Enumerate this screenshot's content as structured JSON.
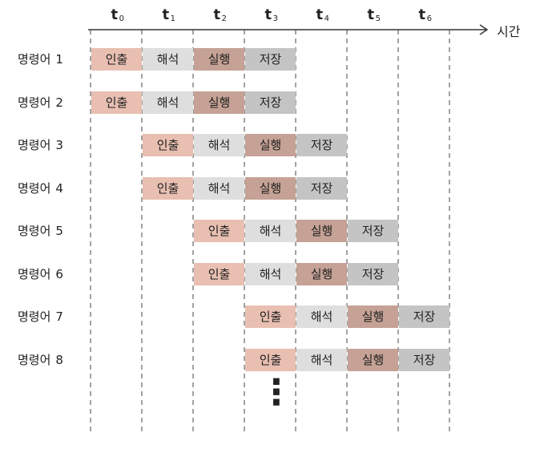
{
  "axis": {
    "label": "시간"
  },
  "ticks": [
    {
      "base": "t",
      "sub": "0"
    },
    {
      "base": "t",
      "sub": "1"
    },
    {
      "base": "t",
      "sub": "2"
    },
    {
      "base": "t",
      "sub": "3"
    },
    {
      "base": "t",
      "sub": "4"
    },
    {
      "base": "t",
      "sub": "5"
    },
    {
      "base": "t",
      "sub": "6"
    }
  ],
  "stages": [
    "인출",
    "해석",
    "실행",
    "저장"
  ],
  "rows": [
    {
      "label": "명령어",
      "num": "1",
      "start": 0
    },
    {
      "label": "명령어",
      "num": "2",
      "start": 0
    },
    {
      "label": "명령어",
      "num": "3",
      "start": 1
    },
    {
      "label": "명령어",
      "num": "4",
      "start": 1
    },
    {
      "label": "명령어",
      "num": "5",
      "start": 2
    },
    {
      "label": "명령어",
      "num": "6",
      "start": 2
    },
    {
      "label": "명령어",
      "num": "7",
      "start": 3
    },
    {
      "label": "명령어",
      "num": "8",
      "start": 3
    }
  ],
  "continuation": "⋮"
}
